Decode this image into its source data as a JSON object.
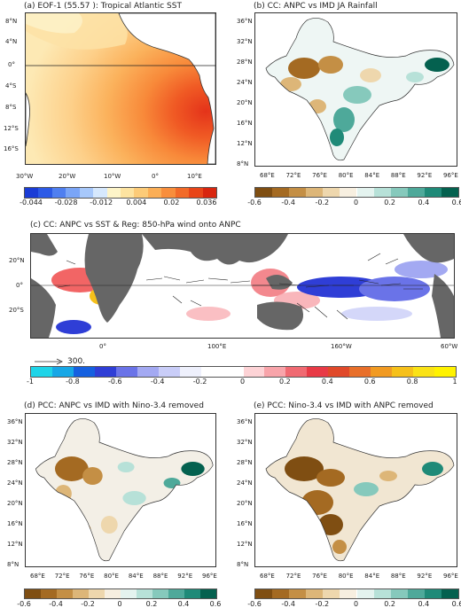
{
  "panels": {
    "a": {
      "title": "(a) EOF-1 (55.57 ): Tropical Atlantic SST",
      "lat_ticks": [
        "8°N",
        "4°N",
        "0°",
        "4°S",
        "8°S",
        "12°S",
        "16°S"
      ],
      "lon_ticks": [
        "30°W",
        "20°W",
        "10°W",
        "0°",
        "10°E"
      ]
    },
    "b": {
      "title": "(b) CC: ANPC vs IMD JA Rainfall",
      "lat_ticks": [
        "36°N",
        "32°N",
        "28°N",
        "24°N",
        "20°N",
        "16°N",
        "12°N",
        "8°N"
      ],
      "lon_ticks": [
        "68°E",
        "72°E",
        "76°E",
        "80°E",
        "84°E",
        "88°E",
        "92°E",
        "96°E"
      ]
    },
    "c": {
      "title": "(c) CC: ANPC vs SST & Reg: 850-hPa wind onto ANPC",
      "lat_ticks": [
        "20°N",
        "0°",
        "20°S"
      ],
      "lon_ticks": [
        "0°",
        "100°E",
        "160°W",
        "60°W"
      ],
      "ref_vector": "300."
    },
    "d": {
      "title": "(d) PCC: ANPC vs IMD with Nino-3.4 removed",
      "lat_ticks": [
        "36°N",
        "32°N",
        "28°N",
        "24°N",
        "20°N",
        "16°N",
        "12°N",
        "8°N"
      ],
      "lon_ticks": [
        "68°E",
        "72°E",
        "76°E",
        "80°E",
        "84°E",
        "88°E",
        "92°E",
        "96°E"
      ]
    },
    "e": {
      "title": "(e) PCC: Nino-3.4 vs IMD with ANPC removed",
      "lat_ticks": [
        "36°N",
        "32°N",
        "28°N",
        "24°N",
        "20°N",
        "16°N",
        "12°N",
        "8°N"
      ],
      "lon_ticks": [
        "68°E",
        "72°E",
        "76°E",
        "80°E",
        "84°E",
        "88°E",
        "92°E",
        "96°E"
      ]
    }
  },
  "colorbars": {
    "a": {
      "labels": [
        "-0.044",
        "-0.028",
        "-0.012",
        "0.004",
        "0.02",
        "0.036"
      ],
      "colors": [
        "#1a3cd6",
        "#2c5ae6",
        "#4f7ff0",
        "#7aa5f7",
        "#a7c8fb",
        "#d6e8fd",
        "#fdf4c8",
        "#fde3a0",
        "#fccb78",
        "#fbae56",
        "#f88e3c",
        "#f26a28",
        "#e84518",
        "#d8250e"
      ]
    },
    "b": {
      "labels": [
        "-0.6",
        "-0.4",
        "-0.2",
        "0",
        "0.2",
        "0.4",
        "0.6"
      ],
      "colors": [
        "#7f4e12",
        "#a46a22",
        "#c48f45",
        "#ddb678",
        "#eed7ad",
        "#f7efe0",
        "#e4f3ef",
        "#b7e1d8",
        "#86c9bc",
        "#4ea99a",
        "#1f8a78",
        "#04614f"
      ]
    },
    "c": {
      "labels": [
        "-1",
        "-0.8",
        "-0.6",
        "-0.4",
        "-0.2",
        "0",
        "0.2",
        "0.4",
        "0.6",
        "0.8",
        "1"
      ],
      "colors": [
        "#1fd4e8",
        "#17a7e6",
        "#1560e0",
        "#2f3ed6",
        "#6a73e8",
        "#a3a9f2",
        "#c9cdf8",
        "#eef0fc",
        "#ffffff",
        "#ffffff",
        "#fdd3d6",
        "#f8a4aa",
        "#f06a72",
        "#e83a46",
        "#e0492a",
        "#e86f2a",
        "#f19a22",
        "#f6c01a",
        "#fae216",
        "#fff200"
      ]
    },
    "d": {
      "labels": [
        "-0.6",
        "-0.4",
        "-0.2",
        "0",
        "0.2",
        "0.4",
        "0.6"
      ]
    },
    "e": {
      "labels": [
        "-0.6",
        "-0.4",
        "-0.2",
        "0",
        "0.2",
        "0.4",
        "0.6"
      ]
    }
  },
  "colors": {
    "land": "#666666",
    "eof_low": "#fdf2c4",
    "eof_high": "#e4461a",
    "neg_blue": "#3a4fe0",
    "pos_red": "#f04a4a"
  }
}
